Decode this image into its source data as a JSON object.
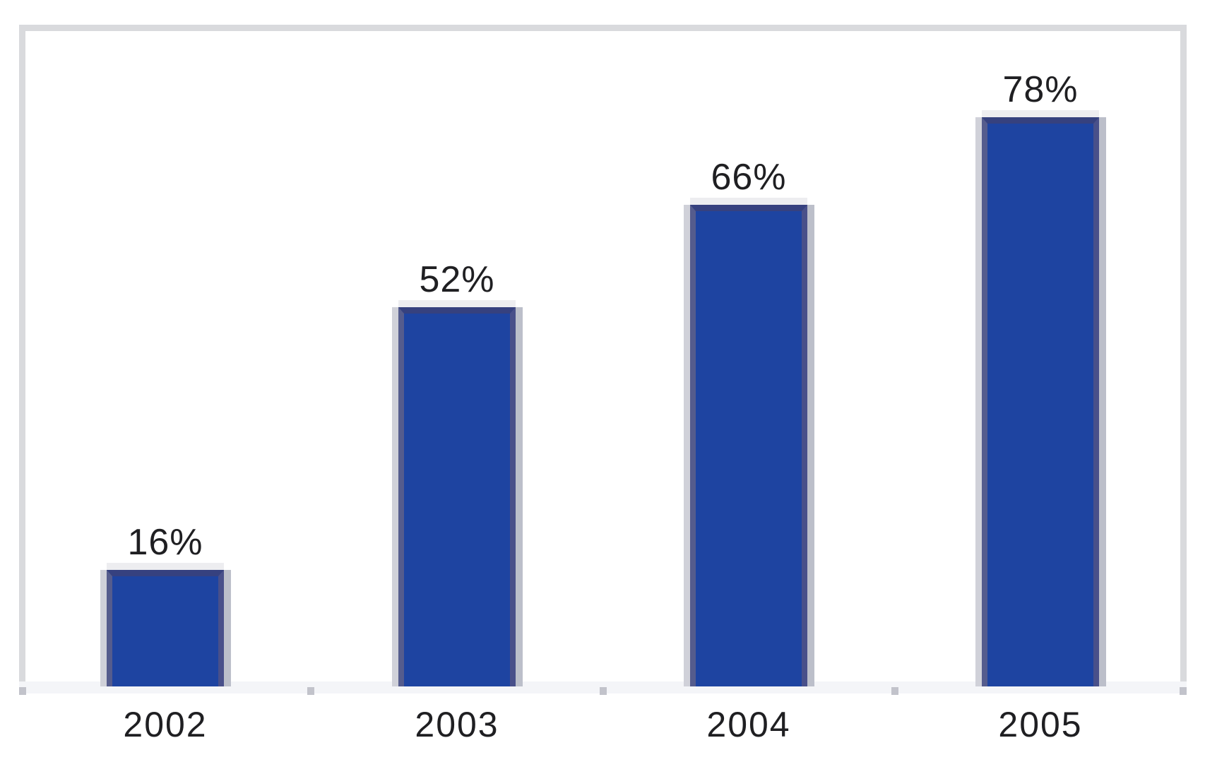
{
  "chart_data": {
    "type": "bar",
    "categories": [
      "2002",
      "2003",
      "2004",
      "2005"
    ],
    "values": [
      16,
      52,
      66,
      78
    ],
    "data_labels": [
      "16%",
      "52%",
      "66%",
      "78%"
    ],
    "unit": "%",
    "title": "",
    "xlabel": "",
    "ylabel": "",
    "ylim": [
      0,
      90
    ],
    "grid": false,
    "legend": false,
    "y_axis_visible": false,
    "data_label_position": "above-bar",
    "colors": {
      "bar_fill": "#1e44a1",
      "bar_edge_top": "#36417f",
      "bar_edge_left": "#555c8d",
      "bar_edge_right": "#49508a",
      "bar_halo": "#c4c7d1",
      "frame_border": "#d9dadd",
      "axis_band": "#f4f5f8",
      "tick": "#c2c3cb",
      "label_text": "#1f1f22",
      "background": "#ffffff"
    }
  }
}
